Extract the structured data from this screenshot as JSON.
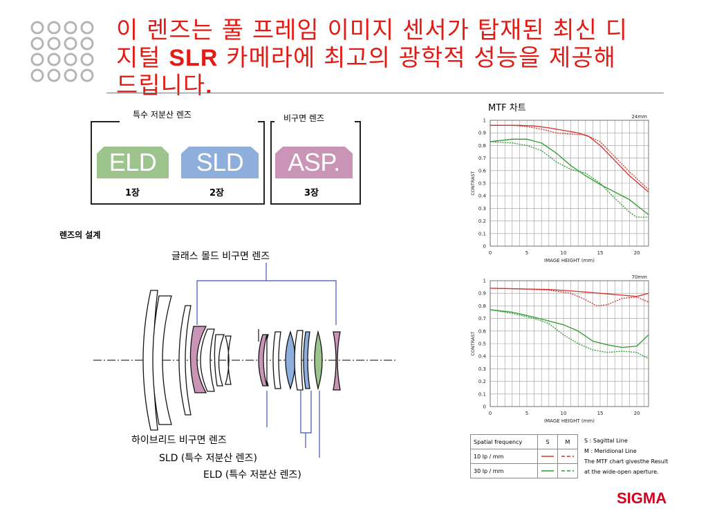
{
  "slide": {
    "title_part1": "이 렌즈는 풀 프레임 이미지 센서가 탑재된 최신 디지털 ",
    "title_bold1": "SLR",
    "title_part2": " 카메라에 최고의 광학적 성능을 제공해 드립니다",
    "title_bold2": "."
  },
  "lens_types": {
    "group1_label": "특수 저분산 렌즈",
    "group2_label": "비구면 렌즈",
    "eld": {
      "name": "ELD",
      "count": "1장",
      "color": "#9cc48c"
    },
    "sld": {
      "name": "SLD",
      "count": "2장",
      "color": "#8eaedb"
    },
    "asp": {
      "name": "ASP.",
      "count": "3장",
      "color": "#c994b6"
    }
  },
  "design": {
    "heading": "렌즈의 설계",
    "glass_mold_label": "글래스 몰드 비구면 렌즈",
    "hybrid_label": "하이브리드 비구면 렌즈",
    "sld_label": "SLD (특수 저분산 렌즈)",
    "eld_label": "ELD (특수 저분산 렌즈)"
  },
  "mtf": {
    "heading": "MTF 차트",
    "legend": {
      "col_freq": "Spatial frequency",
      "col_s": "S",
      "col_m": "M",
      "row1": "10 lp / mm",
      "row2": "30 lp / mm"
    },
    "notes": [
      "S : Sagittal Line",
      "M : Meridional Line",
      "The MTF chart givesthe Result",
      "at the wide-open aperture."
    ]
  },
  "brand": {
    "name": "SIGMA",
    "color": "#d7001b"
  },
  "chart_data": [
    {
      "type": "line",
      "title": "24mm",
      "xlabel": "IMAGE HEIGHT (mm)",
      "ylabel": "CONTRAST",
      "xlim": [
        0,
        21.6
      ],
      "ylim": [
        0,
        1
      ],
      "xticks": [
        0,
        5,
        10,
        15,
        20
      ],
      "yticks": [
        "0",
        "0.1",
        "0.2",
        "0.3",
        "0.4",
        "0.5",
        "0.6",
        "0.7",
        "0.8",
        "0.9",
        "1"
      ],
      "series": [
        {
          "color": "#d3302a",
          "dash": false,
          "points": [
            [
              0,
              0.96
            ],
            [
              4,
              0.96
            ],
            [
              6,
              0.955
            ],
            [
              8,
              0.94
            ],
            [
              10,
              0.92
            ],
            [
              12,
              0.9
            ],
            [
              13.5,
              0.87
            ],
            [
              15,
              0.8
            ],
            [
              17,
              0.68
            ],
            [
              19,
              0.56
            ],
            [
              21.6,
              0.43
            ]
          ]
        },
        {
          "color": "#d3302a",
          "dash": true,
          "points": [
            [
              0,
              0.96
            ],
            [
              3,
              0.96
            ],
            [
              5,
              0.95
            ],
            [
              7,
              0.93
            ],
            [
              9,
              0.9
            ],
            [
              11,
              0.89
            ],
            [
              13,
              0.885
            ],
            [
              15,
              0.83
            ],
            [
              17,
              0.71
            ],
            [
              19,
              0.59
            ],
            [
              21.6,
              0.45
            ]
          ]
        },
        {
          "color": "#2a9a2a",
          "dash": false,
          "points": [
            [
              0,
              0.83
            ],
            [
              3,
              0.85
            ],
            [
              5,
              0.85
            ],
            [
              7,
              0.82
            ],
            [
              9,
              0.74
            ],
            [
              11,
              0.64
            ],
            [
              13,
              0.56
            ],
            [
              15,
              0.49
            ],
            [
              17,
              0.43
            ],
            [
              19,
              0.37
            ],
            [
              20.5,
              0.3
            ],
            [
              21.6,
              0.25
            ]
          ]
        },
        {
          "color": "#2a9a2a",
          "dash": true,
          "points": [
            [
              0,
              0.83
            ],
            [
              3,
              0.82
            ],
            [
              5,
              0.8
            ],
            [
              7,
              0.76
            ],
            [
              9,
              0.67
            ],
            [
              11,
              0.61
            ],
            [
              13,
              0.58
            ],
            [
              15,
              0.5
            ],
            [
              17,
              0.38
            ],
            [
              19,
              0.27
            ],
            [
              20,
              0.23
            ],
            [
              21.6,
              0.23
            ]
          ]
        }
      ]
    },
    {
      "type": "line",
      "title": "70mm",
      "xlabel": "IMAGE HEIGHT (mm)",
      "ylabel": "CONTRAST",
      "xlim": [
        0,
        21.6
      ],
      "ylim": [
        0,
        1
      ],
      "xticks": [
        0,
        5,
        10,
        15,
        20
      ],
      "yticks": [
        "0",
        "0.1",
        "0.2",
        "0.3",
        "0.4",
        "0.5",
        "0.6",
        "0.7",
        "0.8",
        "0.9",
        "1"
      ],
      "series": [
        {
          "color": "#d3302a",
          "dash": false,
          "points": [
            [
              0,
              0.94
            ],
            [
              4,
              0.935
            ],
            [
              8,
              0.93
            ],
            [
              12,
              0.915
            ],
            [
              15,
              0.9
            ],
            [
              18,
              0.885
            ],
            [
              20,
              0.875
            ],
            [
              21.6,
              0.9
            ]
          ]
        },
        {
          "color": "#d3302a",
          "dash": true,
          "points": [
            [
              0,
              0.94
            ],
            [
              4,
              0.935
            ],
            [
              8,
              0.925
            ],
            [
              11,
              0.9
            ],
            [
              13,
              0.85
            ],
            [
              14.5,
              0.8
            ],
            [
              16,
              0.81
            ],
            [
              18,
              0.86
            ],
            [
              20,
              0.87
            ],
            [
              21.6,
              0.83
            ]
          ]
        },
        {
          "color": "#2a9a2a",
          "dash": false,
          "points": [
            [
              0,
              0.77
            ],
            [
              3,
              0.75
            ],
            [
              6,
              0.71
            ],
            [
              8,
              0.68
            ],
            [
              10,
              0.65
            ],
            [
              12,
              0.6
            ],
            [
              14,
              0.52
            ],
            [
              16,
              0.49
            ],
            [
              18,
              0.47
            ],
            [
              20,
              0.48
            ],
            [
              21.6,
              0.57
            ]
          ]
        },
        {
          "color": "#2a9a2a",
          "dash": true,
          "points": [
            [
              0,
              0.77
            ],
            [
              3,
              0.74
            ],
            [
              6,
              0.7
            ],
            [
              8,
              0.66
            ],
            [
              10,
              0.57
            ],
            [
              12,
              0.5
            ],
            [
              14,
              0.45
            ],
            [
              16,
              0.43
            ],
            [
              18,
              0.44
            ],
            [
              20,
              0.43
            ],
            [
              21.6,
              0.38
            ]
          ]
        }
      ]
    }
  ]
}
